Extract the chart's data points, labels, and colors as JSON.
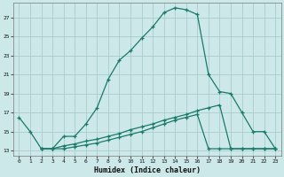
{
  "xlabel": "Humidex (Indice chaleur)",
  "background_color": "#cce8e8",
  "grid_color": "#aacccc",
  "line_color": "#1a7a6a",
  "x_min": -0.5,
  "x_max": 23.5,
  "y_min": 12.5,
  "y_max": 28.5,
  "yticks": [
    13,
    15,
    17,
    19,
    21,
    23,
    25,
    27
  ],
  "xticks": [
    0,
    1,
    2,
    3,
    4,
    5,
    6,
    7,
    8,
    9,
    10,
    11,
    12,
    13,
    14,
    15,
    16,
    17,
    18,
    19,
    20,
    21,
    22,
    23
  ],
  "line1_x": [
    0,
    1,
    2,
    3,
    4,
    5,
    6,
    7,
    8,
    9,
    10,
    11,
    12,
    13,
    14,
    15,
    16,
    17,
    18,
    19,
    20,
    21,
    22,
    23
  ],
  "line1_y": [
    16.5,
    15.0,
    13.2,
    13.2,
    14.5,
    14.5,
    15.8,
    17.5,
    20.5,
    22.5,
    23.5,
    24.8,
    26.0,
    27.5,
    28.0,
    27.8,
    27.3,
    21.0,
    19.2,
    19.0,
    17.0,
    15.0,
    15.0,
    13.2
  ],
  "line2_x": [
    2,
    3,
    4,
    5,
    6,
    7,
    8,
    9,
    10,
    11,
    12,
    13,
    14,
    15,
    16,
    17,
    18,
    19,
    20,
    21,
    22,
    23
  ],
  "line2_y": [
    13.2,
    13.2,
    13.5,
    13.7,
    14.0,
    14.2,
    14.5,
    14.8,
    15.2,
    15.5,
    15.8,
    16.2,
    16.5,
    16.8,
    17.2,
    17.5,
    17.8,
    13.2,
    13.2,
    13.2,
    13.2,
    13.2
  ],
  "line3_x": [
    2,
    3,
    4,
    5,
    6,
    7,
    8,
    9,
    10,
    11,
    12,
    13,
    14,
    15,
    16,
    17,
    18,
    19,
    20,
    21,
    22,
    23
  ],
  "line3_y": [
    13.2,
    13.2,
    13.2,
    13.4,
    13.6,
    13.8,
    14.1,
    14.4,
    14.7,
    15.0,
    15.4,
    15.8,
    16.2,
    16.5,
    16.8,
    13.2,
    13.2,
    13.2,
    13.2,
    13.2,
    13.2,
    13.2
  ]
}
